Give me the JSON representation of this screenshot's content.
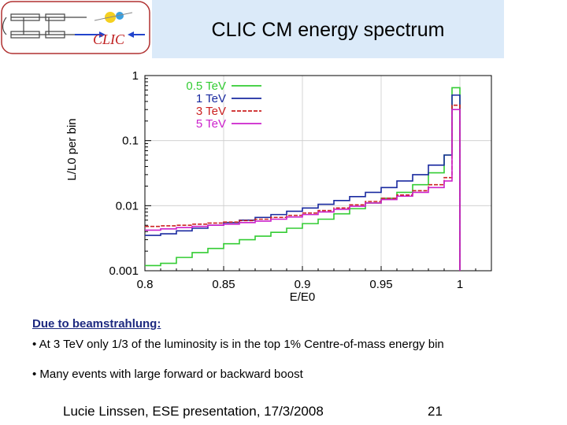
{
  "header": {
    "title": "CLIC CM energy spectrum",
    "logo_text": "CLIC"
  },
  "chart_data": {
    "type": "line",
    "title": "",
    "xlabel": "E/E0",
    "ylabel": "L/L0 per bin",
    "xlim": [
      0.8,
      1.02
    ],
    "ylim": [
      0.001,
      1
    ],
    "yscale": "log",
    "x_ticks": [
      "0.8",
      "0.85",
      "0.9",
      "0.95",
      "1"
    ],
    "y_ticks": [
      "0.001",
      "0.01",
      "0.1",
      "1"
    ],
    "legend_position": "top-left",
    "series": [
      {
        "name": "0.5 TeV",
        "color": "#33cc33",
        "style": "solid",
        "x": [
          0.8,
          0.81,
          0.82,
          0.83,
          0.84,
          0.85,
          0.86,
          0.87,
          0.88,
          0.89,
          0.9,
          0.91,
          0.92,
          0.93,
          0.94,
          0.95,
          0.96,
          0.97,
          0.98,
          0.99,
          0.995,
          1.0
        ],
        "y": [
          0.0012,
          0.0013,
          0.0016,
          0.0019,
          0.0022,
          0.0026,
          0.003,
          0.0034,
          0.0039,
          0.0045,
          0.0053,
          0.0062,
          0.0075,
          0.009,
          0.011,
          0.013,
          0.016,
          0.021,
          0.032,
          0.06,
          0.65,
          0.0
        ]
      },
      {
        "name": "1 TeV",
        "color": "#1a2aa0",
        "style": "solid",
        "x": [
          0.8,
          0.81,
          0.82,
          0.83,
          0.84,
          0.85,
          0.86,
          0.87,
          0.88,
          0.89,
          0.9,
          0.91,
          0.92,
          0.93,
          0.94,
          0.95,
          0.96,
          0.97,
          0.98,
          0.99,
          0.995,
          1.0
        ],
        "y": [
          0.0035,
          0.0037,
          0.0041,
          0.0045,
          0.005,
          0.0055,
          0.006,
          0.0066,
          0.0073,
          0.0082,
          0.0092,
          0.0105,
          0.012,
          0.0138,
          0.016,
          0.019,
          0.024,
          0.03,
          0.042,
          0.06,
          0.5,
          0.0
        ]
      },
      {
        "name": "3 TeV",
        "color": "#cc2222",
        "style": "dashed",
        "x": [
          0.8,
          0.81,
          0.82,
          0.83,
          0.84,
          0.85,
          0.86,
          0.87,
          0.88,
          0.89,
          0.9,
          0.91,
          0.92,
          0.93,
          0.94,
          0.95,
          0.96,
          0.97,
          0.98,
          0.99,
          0.995,
          1.0
        ],
        "y": [
          0.0048,
          0.0049,
          0.005,
          0.0052,
          0.0054,
          0.0056,
          0.0059,
          0.0062,
          0.0066,
          0.0071,
          0.0077,
          0.0084,
          0.0092,
          0.0103,
          0.0116,
          0.013,
          0.0146,
          0.017,
          0.021,
          0.027,
          0.35,
          0.0
        ]
      },
      {
        "name": "5 TeV",
        "color": "#cc22cc",
        "style": "solid",
        "x": [
          0.8,
          0.81,
          0.82,
          0.83,
          0.84,
          0.85,
          0.86,
          0.87,
          0.88,
          0.89,
          0.9,
          0.91,
          0.92,
          0.93,
          0.94,
          0.95,
          0.96,
          0.97,
          0.98,
          0.99,
          0.995,
          1.0
        ],
        "y": [
          0.0042,
          0.0044,
          0.0046,
          0.0048,
          0.005,
          0.0052,
          0.0055,
          0.0058,
          0.0062,
          0.0067,
          0.0073,
          0.008,
          0.0088,
          0.0098,
          0.011,
          0.0124,
          0.014,
          0.016,
          0.019,
          0.024,
          0.3,
          0.0
        ]
      }
    ]
  },
  "notes": {
    "heading": "Due to beamstrahlung:",
    "bullets": [
      "• At 3 TeV only 1/3 of the luminosity is in the top 1% Centre-of-mass energy bin",
      "• Many events with large forward or backward boost"
    ]
  },
  "footer": {
    "text": "Lucie Linssen, ESE presentation, 17/3/2008",
    "page": "21"
  }
}
